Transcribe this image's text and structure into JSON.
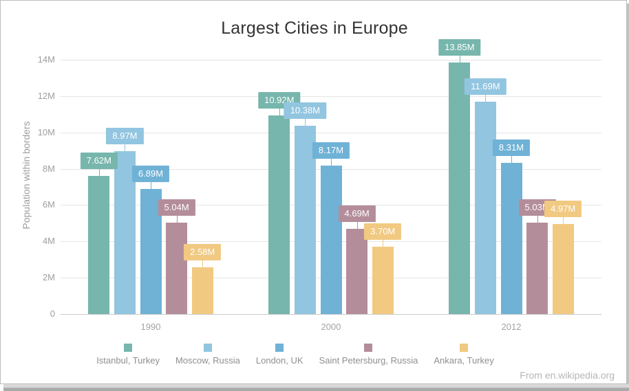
{
  "attribution": "From en.wikipedia.org",
  "chart_data": {
    "type": "bar",
    "title": "Largest Cities in Europe",
    "xlabel": "",
    "ylabel": "Population within borders",
    "categories": [
      "1990",
      "2000",
      "2012"
    ],
    "series": [
      {
        "name": "Istanbul, Turkey",
        "color": "#77b6ac",
        "values": [
          7.62,
          10.92,
          13.85
        ],
        "labels": [
          "7.62M",
          "10.92M",
          "13.85M"
        ]
      },
      {
        "name": "Moscow, Russia",
        "color": "#92c5e0",
        "values": [
          8.97,
          10.38,
          11.69
        ],
        "labels": [
          "8.97M",
          "10.38M",
          "11.69M"
        ]
      },
      {
        "name": "London, UK",
        "color": "#6fb2d6",
        "values": [
          6.89,
          8.17,
          8.31
        ],
        "labels": [
          "6.89M",
          "8.17M",
          "8.31M"
        ]
      },
      {
        "name": "Saint Petersburg, Russia",
        "color": "#b48d9b",
        "values": [
          5.04,
          4.69,
          5.03
        ],
        "labels": [
          "5.04M",
          "4.69M",
          "5.03M"
        ]
      },
      {
        "name": "Ankara, Turkey",
        "color": "#f1c981",
        "values": [
          2.58,
          3.7,
          4.97
        ],
        "labels": [
          "2.58M",
          "3.70M",
          "4.97M"
        ]
      }
    ],
    "y_ticks": [
      {
        "label": "0",
        "value": 0
      },
      {
        "label": "2M",
        "value": 2
      },
      {
        "label": "4M",
        "value": 4
      },
      {
        "label": "6M",
        "value": 6
      },
      {
        "label": "8M",
        "value": 8
      },
      {
        "label": "10M",
        "value": 10
      },
      {
        "label": "12M",
        "value": 12
      },
      {
        "label": "14M",
        "value": 14
      }
    ],
    "ylim": [
      0,
      14
    ],
    "grid": true,
    "legend_position": "bottom"
  },
  "colors": {
    "grid": "#e4e4e4",
    "axis_line": "#c9c9c9",
    "axis_text": "#9e9e9e",
    "title_text": "#333333",
    "attribution_text": "#b5b5b5"
  }
}
